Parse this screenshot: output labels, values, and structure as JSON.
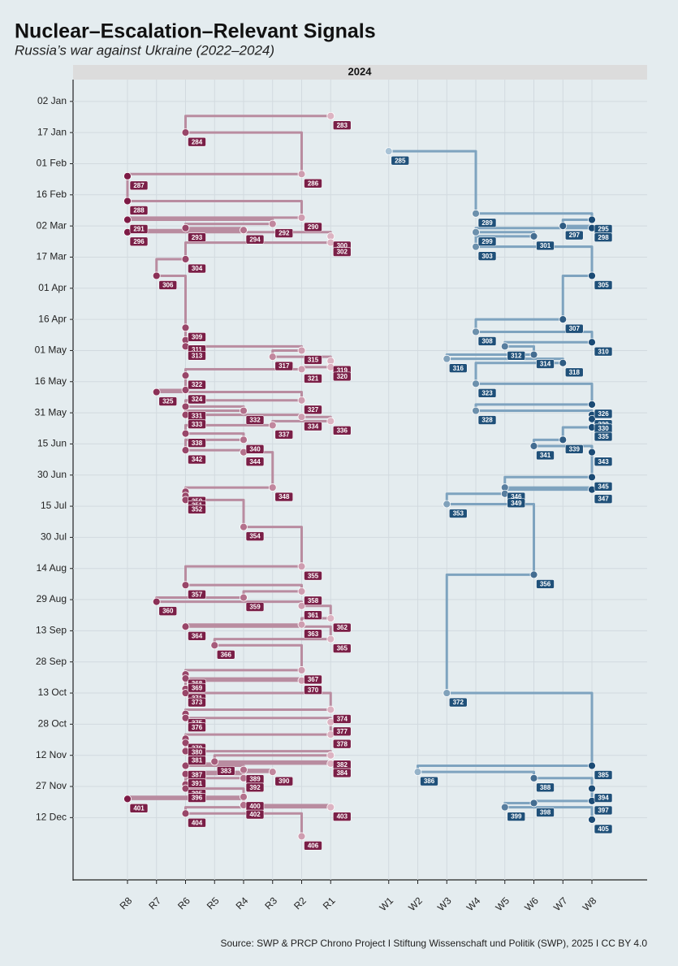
{
  "chart_data": {
    "type": "step-signal",
    "title": "Nuclear–Escalation–Relevant Signals",
    "subtitle": "Russia’s war against Ukraine (2022–2024)",
    "panel_label": "2024",
    "source": "Source: SWP & PRCP Chrono Project  I  Stiftung Wissenschaft und Politik (SWP), 2025 I CC BY 4.0",
    "categories": [
      "R8",
      "R7",
      "R6",
      "R5",
      "R4",
      "R3",
      "R2",
      "R1",
      null,
      "W1",
      "W2",
      "W3",
      "W4",
      "W5",
      "W6",
      "W7",
      "W8"
    ],
    "ylim": [
      -8.5,
      377
    ],
    "yticks": [
      {
        "value": 2,
        "label": "02 Jan"
      },
      {
        "value": 17,
        "label": "17 Jan"
      },
      {
        "value": 32,
        "label": "01 Feb"
      },
      {
        "value": 47,
        "label": "16 Feb"
      },
      {
        "value": 62,
        "label": "02 Mar"
      },
      {
        "value": 77,
        "label": "17 Mar"
      },
      {
        "value": 92,
        "label": "01 Apr"
      },
      {
        "value": 107,
        "label": "16 Apr"
      },
      {
        "value": 122,
        "label": "01 May"
      },
      {
        "value": 137,
        "label": "16 May"
      },
      {
        "value": 152,
        "label": "31 May"
      },
      {
        "value": 167,
        "label": "15 Jun"
      },
      {
        "value": 182,
        "label": "30 Jun"
      },
      {
        "value": 197,
        "label": "15 Jul"
      },
      {
        "value": 212,
        "label": "30 Jul"
      },
      {
        "value": 227,
        "label": "14 Aug"
      },
      {
        "value": 242,
        "label": "29 Aug"
      },
      {
        "value": 257,
        "label": "13 Sep"
      },
      {
        "value": 272,
        "label": "28 Sep"
      },
      {
        "value": 287,
        "label": "13 Oct"
      },
      {
        "value": 302,
        "label": "28 Oct"
      },
      {
        "value": 317,
        "label": "12 Nov"
      },
      {
        "value": 332,
        "label": "27 Nov"
      },
      {
        "value": 347,
        "label": "12 Dec"
      }
    ],
    "grid": true,
    "series": [
      {
        "color": "#b98ca0",
        "point_colors": [
          "#7d1a45",
          "#dcb3c2"
        ],
        "label_color": "#7a1f47",
        "labels": [
          283,
          284,
          286,
          287,
          288,
          290,
          291,
          292,
          293,
          294,
          296,
          300,
          302,
          304,
          306,
          309,
          311,
          313,
          315,
          317,
          319,
          320,
          321,
          322,
          324,
          325,
          327,
          331,
          332,
          333,
          334,
          336,
          337,
          338,
          340,
          342,
          344,
          348,
          350,
          351,
          352,
          354,
          355,
          357,
          358,
          359,
          360,
          361,
          362,
          363,
          364,
          365,
          366,
          367,
          368,
          369,
          370,
          371,
          373,
          374,
          375,
          376,
          377,
          378,
          379,
          380,
          381,
          382,
          383,
          384,
          387,
          389,
          390,
          391,
          392,
          395,
          396,
          400,
          401,
          402,
          403,
          404,
          406
        ],
        "x": [
          "R1",
          "R6",
          "R2",
          "R8",
          "R8",
          "R2",
          "R8",
          "R3",
          "R6",
          "R4",
          "R8",
          "R1",
          "R1",
          "R6",
          "R7",
          "R6",
          "R6",
          "R6",
          "R2",
          "R3",
          "R1",
          "R1",
          "R2",
          "R6",
          "R6",
          "R7",
          "R2",
          "R6",
          "R4",
          "R6",
          "R2",
          "R1",
          "R3",
          "R6",
          "R4",
          "R6",
          "R4",
          "R3",
          "R6",
          "R6",
          "R6",
          "R4",
          "R2",
          "R6",
          "R2",
          "R4",
          "R7",
          "R2",
          "R1",
          "R2",
          "R6",
          "R1",
          "R5",
          "R2",
          "R6",
          "R6",
          "R2",
          "R6",
          "R6",
          "R1",
          "R6",
          "R6",
          "R1",
          "R1",
          "R6",
          "R6",
          "R6",
          "R1",
          "R5",
          "R1",
          "R6",
          "R4",
          "R3",
          "R6",
          "R4",
          "R6",
          "R6",
          "R4",
          "R8",
          "R4",
          "R1",
          "R6",
          "R2"
        ],
        "values": [
          9,
          17,
          37,
          38,
          50,
          58,
          59,
          61,
          63,
          64,
          65,
          67,
          70,
          78,
          86,
          111,
          117,
          120,
          122,
          125,
          127,
          130,
          131,
          134,
          141,
          142,
          146,
          149,
          151,
          153,
          154,
          156,
          158,
          162,
          165,
          170,
          171,
          188,
          190,
          192,
          194,
          207,
          226,
          235,
          238,
          241,
          243,
          245,
          251,
          254,
          255,
          261,
          264,
          276,
          278,
          280,
          281,
          285,
          287,
          295,
          297,
          299,
          301,
          307,
          309,
          311,
          315,
          317,
          320,
          321,
          322,
          324,
          325,
          326,
          328,
          331,
          333,
          337,
          338,
          341,
          342,
          345,
          356
        ]
      },
      {
        "color": "#7ea3bf",
        "point_colors": [
          "#a9c3d6",
          "#1b4b75"
        ],
        "label_color": "#1f5079",
        "labels": [
          285,
          289,
          295,
          297,
          298,
          299,
          301,
          303,
          305,
          307,
          308,
          310,
          312,
          314,
          316,
          318,
          323,
          326,
          328,
          329,
          330,
          335,
          339,
          341,
          343,
          345,
          346,
          347,
          349,
          353,
          356,
          372,
          385,
          386,
          388,
          394,
          397,
          398,
          399,
          405
        ],
        "x": [
          "W1",
          "W4",
          "W8",
          "W7",
          "W8",
          "W4",
          "W6",
          "W4",
          "W8",
          "W7",
          "W4",
          "W8",
          "W5",
          "W6",
          "W3",
          "W7",
          "W4",
          "W8",
          "W4",
          "W8",
          "W8",
          "W8",
          "W7",
          "W6",
          "W8",
          "W8",
          "W5",
          "W8",
          "W5",
          "W3",
          "W6",
          "W3",
          "W8",
          "W2",
          "W6",
          "W8",
          "W8",
          "W6",
          "W5",
          "W8"
        ],
        "values": [
          26,
          56,
          59,
          62,
          63,
          65,
          67,
          72,
          86,
          107,
          113,
          118,
          120,
          124,
          126,
          128,
          138,
          148,
          151,
          153,
          155,
          159,
          165,
          168,
          171,
          183,
          188,
          189,
          191,
          196,
          230,
          287,
          322,
          325,
          328,
          333,
          339,
          340,
          342,
          348
        ]
      }
    ]
  }
}
